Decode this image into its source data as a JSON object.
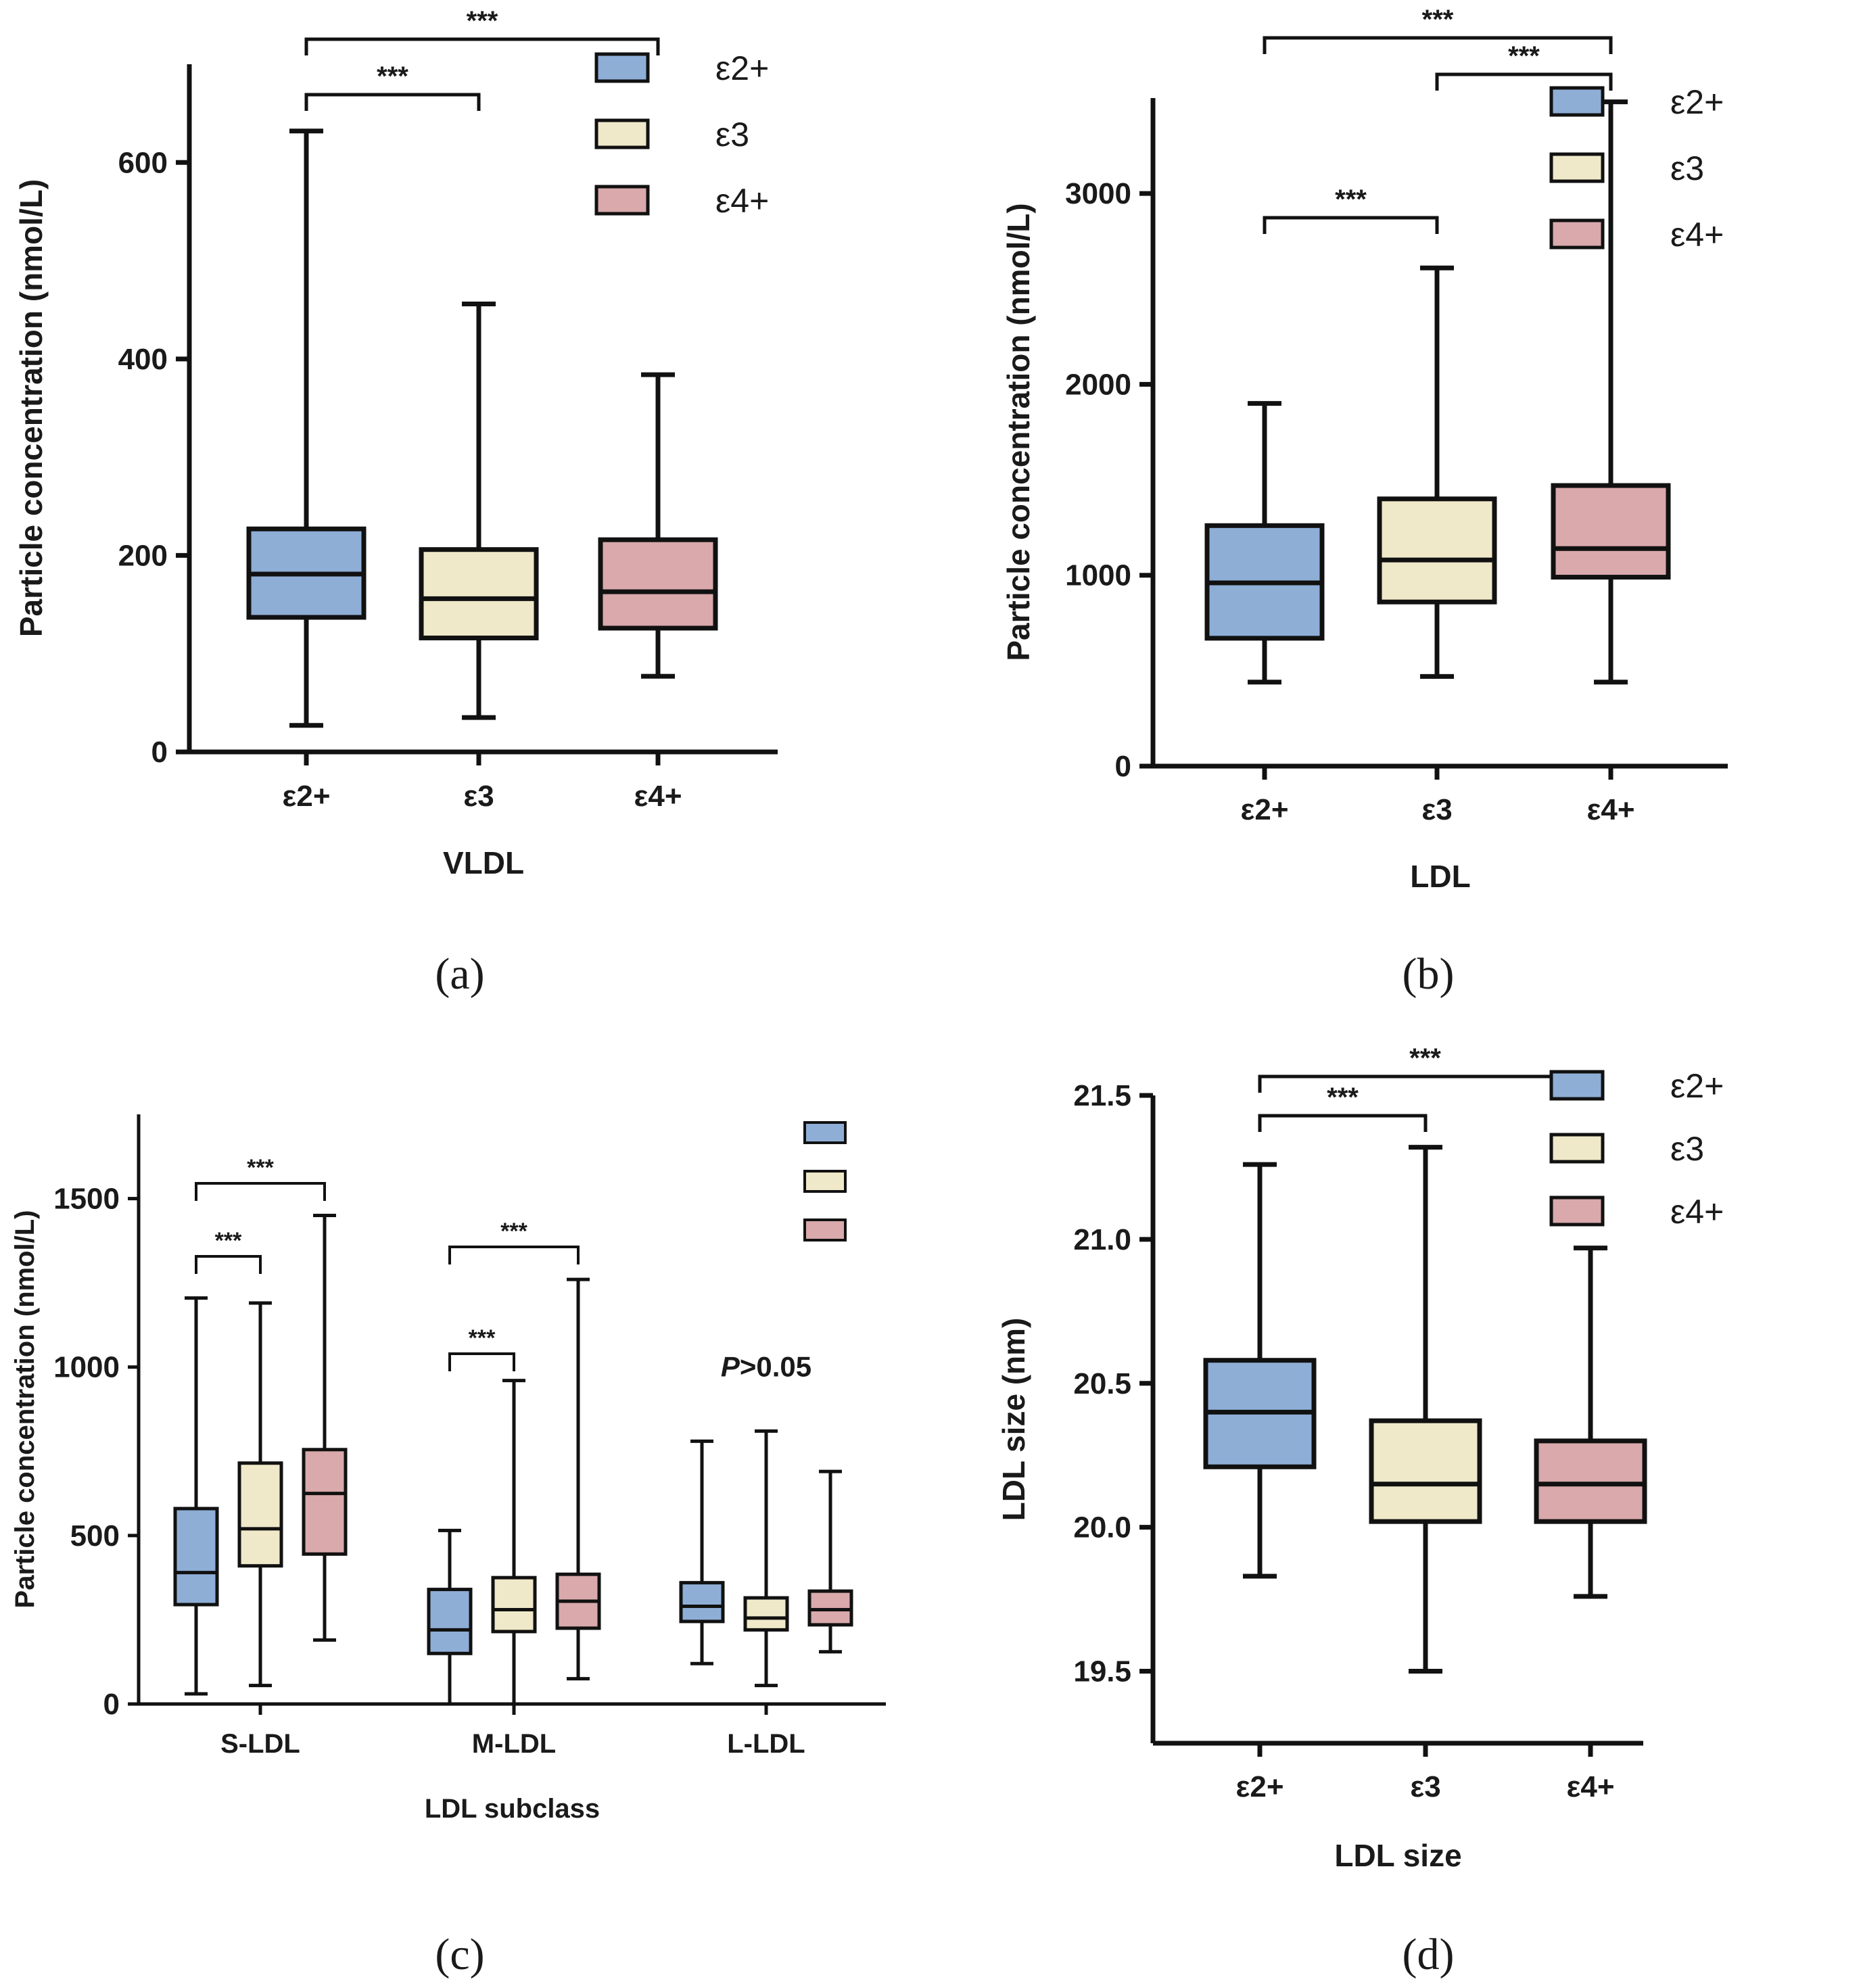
{
  "figure": {
    "panel_labels": [
      "(a)",
      "(b)",
      "(c)",
      "(d)"
    ]
  },
  "colors": {
    "ε2+": "#8eaed6",
    "ε3": "#efe9c9",
    "ε4+": "#d9a9ab"
  },
  "chart_data": [
    {
      "id": "a",
      "type": "box",
      "xlabel": "VLDL",
      "ylabel": "Particle concentration (nmol/L)",
      "ylim": [
        0,
        700
      ],
      "yticks": [
        0,
        200,
        400,
        600
      ],
      "categories": [
        "ε2+",
        "ε3",
        "ε4+"
      ],
      "legend": [
        "ε2+",
        "ε3",
        "ε4+"
      ],
      "legend_position": "top-right",
      "boxes": [
        {
          "group": "ε2+",
          "min": 27,
          "q1": 137,
          "median": 181,
          "q3": 227,
          "max": 632
        },
        {
          "group": "ε3",
          "min": 35,
          "q1": 116,
          "median": 156,
          "q3": 206,
          "max": 456
        },
        {
          "group": "ε4+",
          "min": 77,
          "q1": 126,
          "median": 163,
          "q3": 216,
          "max": 384
        }
      ],
      "significance": [
        {
          "from": 0,
          "to": 1,
          "label": "***",
          "level": 1
        },
        {
          "from": 0,
          "to": 2,
          "label": "***",
          "level": 2
        }
      ]
    },
    {
      "id": "b",
      "type": "box",
      "xlabel": "LDL",
      "ylabel": "Particle concentration (nmol/L)",
      "ylim": [
        0,
        3500
      ],
      "yticks": [
        0,
        1000,
        2000,
        3000
      ],
      "categories": [
        "ε2+",
        "ε3",
        "ε4+"
      ],
      "legend": [
        "ε2+",
        "ε3",
        "ε4+"
      ],
      "legend_position": "top-right",
      "boxes": [
        {
          "group": "ε2+",
          "min": 440,
          "q1": 670,
          "median": 960,
          "q3": 1260,
          "max": 1900
        },
        {
          "group": "ε3",
          "min": 470,
          "q1": 860,
          "median": 1080,
          "q3": 1400,
          "max": 2610
        },
        {
          "group": "ε4+",
          "min": 440,
          "q1": 990,
          "median": 1140,
          "q3": 1470,
          "max": 3480
        }
      ],
      "significance": [
        {
          "from": 0,
          "to": 1,
          "label": "***",
          "level": 1
        },
        {
          "from": 1,
          "to": 2,
          "label": "***",
          "level": 2
        },
        {
          "from": 0,
          "to": 2,
          "label": "***",
          "level": 3
        }
      ]
    },
    {
      "id": "c",
      "type": "box",
      "xlabel": "LDL subclass",
      "ylabel": "Particle concentration (nmol/L)",
      "ylim": [
        0,
        1750
      ],
      "yticks": [
        0,
        500,
        1000,
        1500
      ],
      "categories": [
        "S-LDL",
        "M-LDL",
        "L-LDL"
      ],
      "legend": [
        "",
        "",
        ""
      ],
      "legend_position": "top-right",
      "groups": [
        "ε2+",
        "ε3",
        "ε4+"
      ],
      "boxes": [
        {
          "category": "S-LDL",
          "group": "ε2+",
          "min": 30,
          "q1": 295,
          "median": 390,
          "q3": 580,
          "max": 1205
        },
        {
          "category": "S-LDL",
          "group": "ε3",
          "min": 55,
          "q1": 410,
          "median": 520,
          "q3": 715,
          "max": 1190
        },
        {
          "category": "S-LDL",
          "group": "ε4+",
          "min": 190,
          "q1": 445,
          "median": 625,
          "q3": 755,
          "max": 1450
        },
        {
          "category": "M-LDL",
          "group": "ε2+",
          "min": 0,
          "q1": 150,
          "median": 220,
          "q3": 340,
          "max": 515
        },
        {
          "category": "M-LDL",
          "group": "ε3",
          "min": 0,
          "q1": 215,
          "median": 280,
          "q3": 375,
          "max": 960
        },
        {
          "category": "M-LDL",
          "group": "ε4+",
          "min": 75,
          "q1": 225,
          "median": 305,
          "q3": 385,
          "max": 1260
        },
        {
          "category": "L-LDL",
          "group": "ε2+",
          "min": 120,
          "q1": 245,
          "median": 290,
          "q3": 360,
          "max": 780
        },
        {
          "category": "L-LDL",
          "group": "ε3",
          "min": 55,
          "q1": 220,
          "median": 255,
          "q3": 315,
          "max": 810
        },
        {
          "category": "L-LDL",
          "group": "ε4+",
          "min": 155,
          "q1": 235,
          "median": 280,
          "q3": 335,
          "max": 690
        }
      ],
      "significance": [
        {
          "from": 0,
          "to": 1,
          "label": "***",
          "level": 1
        },
        {
          "from": 0,
          "to": 2,
          "label": "***",
          "level": 2
        },
        {
          "from": 3,
          "to": 4,
          "label": "***",
          "level": 1
        },
        {
          "from": 3,
          "to": 5,
          "label": "***",
          "level": 2
        }
      ],
      "annotations": [
        {
          "category": "L-LDL",
          "text_italic": "P",
          "text": ">0.05",
          "y": 1000
        }
      ]
    },
    {
      "id": "d",
      "type": "box",
      "xlabel": "LDL size",
      "ylabel": "LDL size (nm)",
      "ylim": [
        19.25,
        21.5
      ],
      "yticks": [
        19.5,
        20.0,
        20.5,
        21.0,
        21.5
      ],
      "ytick_labels": [
        "19.5",
        "20.0",
        "20.5",
        "21.0",
        "21.5"
      ],
      "categories": [
        "ε2+",
        "ε3",
        "ε4+"
      ],
      "legend": [
        "ε2+",
        "ε3",
        "ε4+"
      ],
      "legend_position": "top-right",
      "boxes": [
        {
          "group": "ε2+",
          "min": 19.83,
          "q1": 20.21,
          "median": 20.4,
          "q3": 20.58,
          "max": 21.26
        },
        {
          "group": "ε3",
          "min": 19.5,
          "q1": 20.02,
          "median": 20.15,
          "q3": 20.37,
          "max": 21.32
        },
        {
          "group": "ε4+",
          "min": 19.76,
          "q1": 20.02,
          "median": 20.15,
          "q3": 20.3,
          "max": 20.97
        }
      ],
      "significance": [
        {
          "from": 0,
          "to": 1,
          "label": "***",
          "level": 1
        },
        {
          "from": 0,
          "to": 2,
          "label": "***",
          "level": 2
        }
      ]
    }
  ]
}
